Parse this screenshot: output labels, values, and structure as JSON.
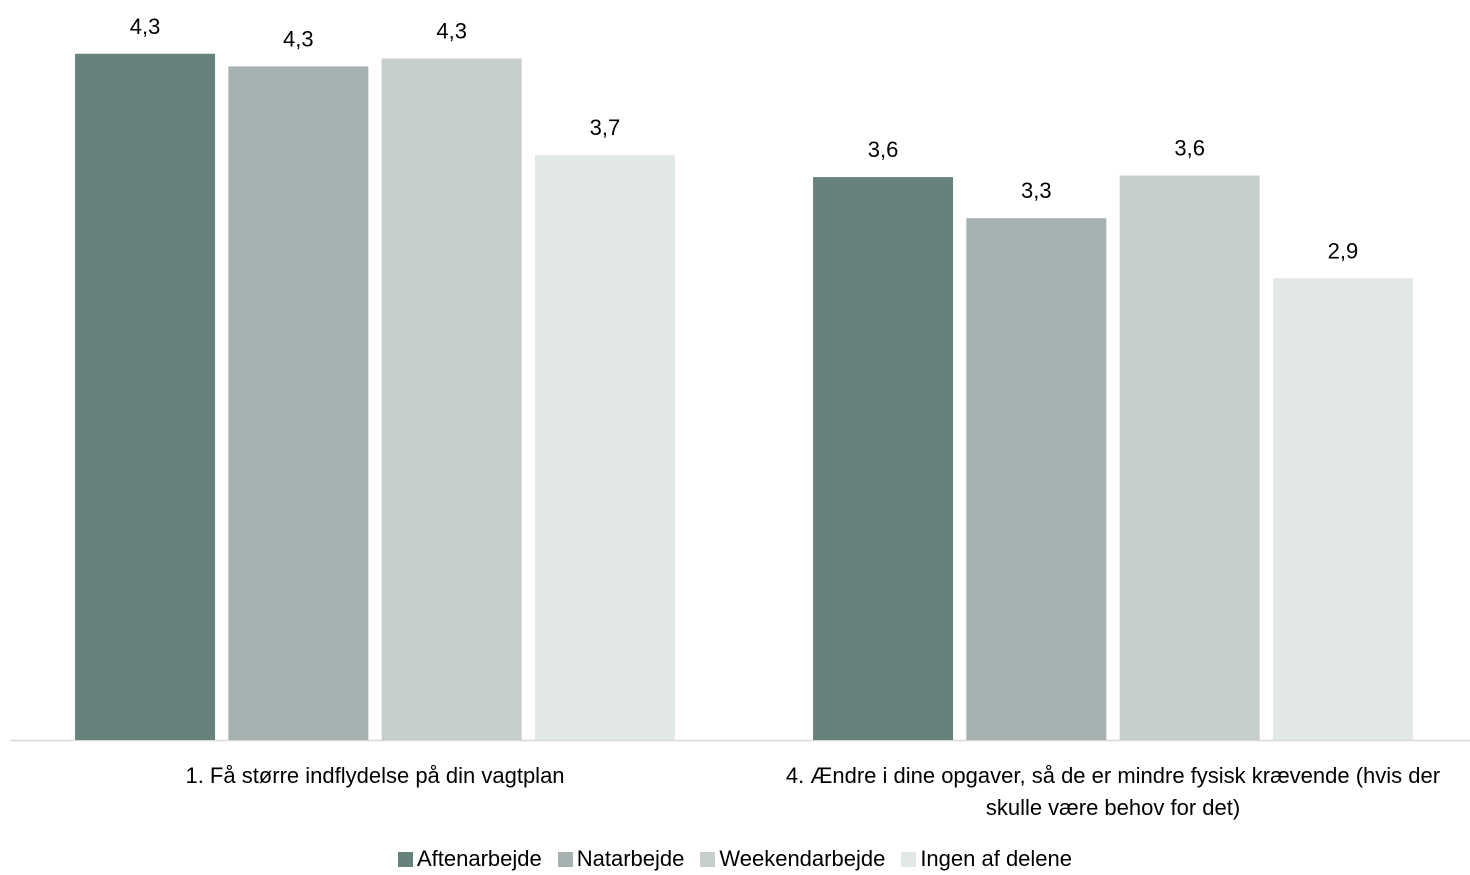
{
  "chart_data": {
    "type": "bar",
    "categories": [
      "1. Få større indflydelse på din vagtplan",
      "4. Ændre i dine opgaver, så de er mindre fysisk krævende (hvis der skulle være behov for det)"
    ],
    "series": [
      {
        "name": "Aftenarbejde",
        "color": "#67817c",
        "values": [
          4.34,
          3.56
        ],
        "value_labels": [
          "4,3",
          "3,6"
        ]
      },
      {
        "name": "Natarbejde",
        "color": "#a5b2b1",
        "values": [
          4.26,
          3.3
        ],
        "value_labels": [
          "4,3",
          "3,3"
        ]
      },
      {
        "name": "Weekendarbejde",
        "color": "#c5cecd",
        "values": [
          4.31,
          3.57
        ],
        "value_labels": [
          "4,3",
          "3,6"
        ]
      },
      {
        "name": "Ingen af delene",
        "color": "#e1e8e6",
        "values": [
          3.7,
          2.92
        ],
        "value_labels": [
          "3,7",
          "2,9"
        ]
      }
    ],
    "ylim": [
      0,
      4.68
    ]
  }
}
